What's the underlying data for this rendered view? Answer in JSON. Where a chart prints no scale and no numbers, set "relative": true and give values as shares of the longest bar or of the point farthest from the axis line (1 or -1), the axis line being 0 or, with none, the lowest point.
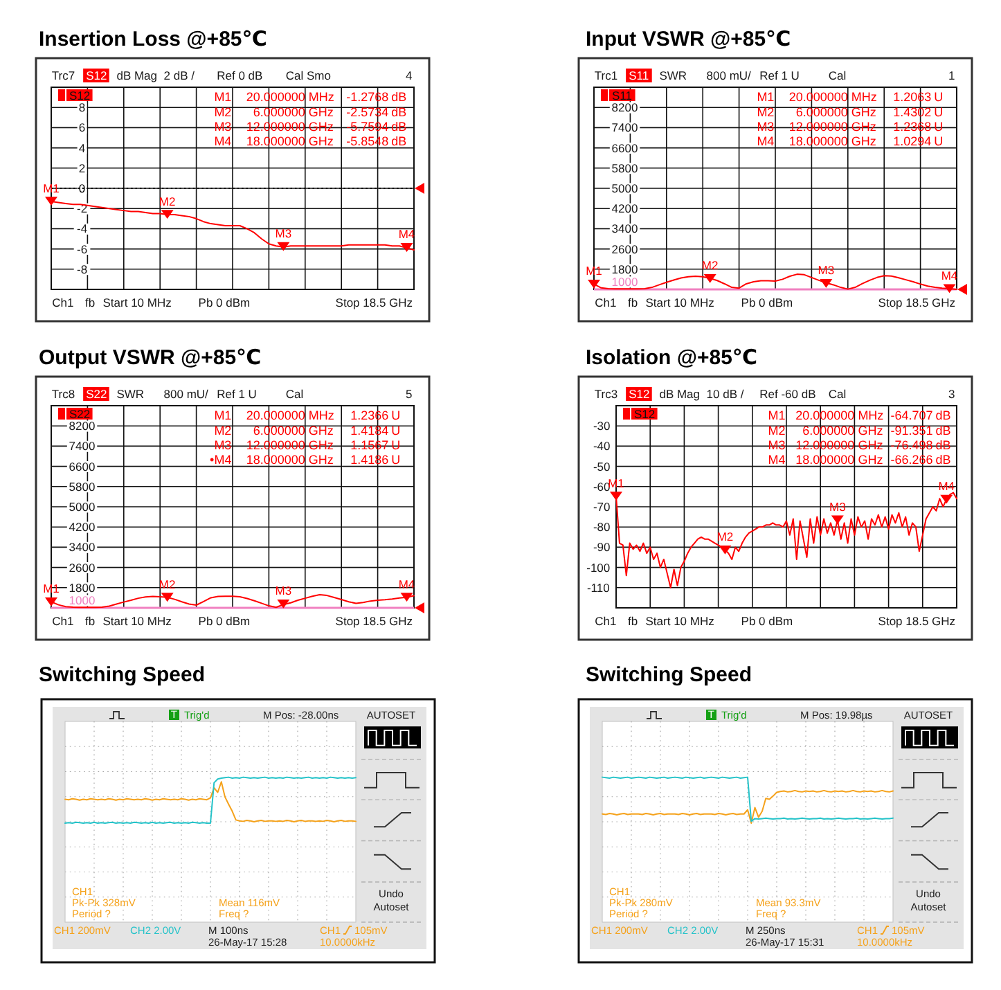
{
  "chart_data": [
    {
      "type": "line",
      "title": "Insertion Loss @+85℃",
      "categories": [
        null,
        null,
        null,
        null,
        null,
        null,
        null,
        null,
        null,
        null,
        null,
        null,
        null,
        null,
        null,
        null,
        null,
        null,
        null,
        null,
        null,
        null,
        null,
        null,
        null,
        null,
        null,
        null,
        null,
        null,
        null,
        null,
        null,
        null,
        null,
        null,
        null,
        null,
        null,
        null,
        null,
        null,
        null,
        null,
        null,
        null,
        null,
        null,
        null,
        null,
        null
      ],
      "ylim": [
        -10,
        10
      ],
      "yticks": [
        {
          "value": -10,
          "label": null
        },
        -8,
        -6,
        -4,
        -2,
        0,
        2,
        4,
        6,
        8,
        {
          "value": 10,
          "label": null
        }
      ],
      "grid": true,
      "tick_labels": "y",
      "legend": "top left",
      "series": [
        {
          "name": "S12",
          "color": "#ff0000",
          "values": [
            -1.3,
            -1.4,
            -1.5,
            -1.6,
            -1.6,
            -1.7,
            -1.8,
            -1.9,
            -2,
            -2.1,
            -2.2,
            -2.3,
            -2.3,
            -2.4,
            -2.5,
            -2.5,
            -2.6,
            -2.6,
            -2.7,
            -2.8,
            -3,
            -3.3,
            -3.5,
            -3.6,
            -3.7,
            -3.7,
            -3.7,
            -4,
            -4.4,
            -5,
            -5.5,
            -5.7,
            -5.8,
            -5.7,
            -5.7,
            -5.7,
            -5.7,
            -5.7,
            -5.7,
            -5.7,
            -5.7,
            -5.6,
            -5.6,
            -5.6,
            -5.6,
            -5.6,
            -5.6,
            -5.7,
            -5.7,
            -5.9,
            -6.1
          ]
        },
        {
          "type": "scatter",
          "marker": "triangle",
          "color": "#ff0000",
          "values": [
            -1.2768,
            null,
            null,
            null,
            null,
            null,
            null,
            null,
            null,
            null,
            null,
            null,
            null,
            null,
            null,
            null,
            -2.5734,
            null,
            null,
            null,
            null,
            null,
            null,
            null,
            null,
            null,
            null,
            null,
            null,
            null,
            null,
            null,
            -5.7594,
            null,
            null,
            null,
            null,
            null,
            null,
            null,
            null,
            null,
            null,
            null,
            null,
            null,
            null,
            null,
            null,
            -5.8548,
            null
          ],
          "value_labels": [
            "M1",
            null,
            null,
            null,
            null,
            null,
            null,
            null,
            null,
            null,
            null,
            null,
            null,
            null,
            null,
            null,
            "M2",
            null,
            null,
            null,
            null,
            null,
            null,
            null,
            null,
            null,
            null,
            null,
            null,
            null,
            null,
            null,
            "M3",
            null,
            null,
            null,
            null,
            null,
            null,
            null,
            null,
            null,
            null,
            null,
            null,
            null,
            null,
            null,
            null,
            "M4",
            null
          ]
        }
      ],
      "ref_lines": [
        {
          "axis": "y",
          "value": 0,
          "color": "#000000",
          "line_style": "dotted"
        }
      ],
      "annotations": [
        "Trc7",
        "S12",
        "dB Mag",
        "2 dB /",
        "Ref 0 dB",
        "Cal Smo",
        "4",
        "Ch1",
        "fb",
        "Start 10 MHz",
        "Pb 0 dBm",
        "Stop 18.5 GHz",
        "M1 20.000000 MHz -1.2768 dB",
        "M2 6.000000 GHz -2.5734 dB",
        "M3 12.000000 GHz -5.7594 dB",
        "M4 18.000000 GHz -5.8548 dB"
      ]
    },
    {
      "type": "line",
      "title": "Input VSWR @+85℃",
      "categories": [
        null,
        null,
        null,
        null,
        null,
        null,
        null,
        null,
        null,
        null,
        null,
        null,
        null,
        null,
        null,
        null,
        null,
        null,
        null,
        null,
        null,
        null,
        null,
        null,
        null,
        null,
        null,
        null,
        null,
        null,
        null,
        null,
        null,
        null,
        null,
        null,
        null,
        null,
        null,
        null,
        null,
        null,
        null,
        null,
        null,
        null,
        null,
        null,
        null,
        null,
        null
      ],
      "ylim": [
        1000,
        9000
      ],
      "yticks": [
        1000,
        1800,
        2600,
        3400,
        4200,
        5000,
        5800,
        6600,
        7400,
        8200,
        {
          "value": 9000,
          "label": null
        }
      ],
      "grid": true,
      "tick_labels": "y",
      "legend": "top left",
      "series": [
        {
          "name": "S11",
          "color": "#ff0000",
          "values": [
            1210,
            1060,
            1030,
            1020,
            1020,
            1020,
            1020,
            1030,
            1080,
            1180,
            1280,
            1370,
            1450,
            1500,
            1520,
            1500,
            1440,
            1350,
            1220,
            1080,
            1050,
            1220,
            1300,
            1340,
            1340,
            1330,
            1400,
            1520,
            1600,
            1580,
            1470,
            1360,
            1260,
            1180,
            1080,
            1010,
            1080,
            1230,
            1360,
            1470,
            1540,
            1530,
            1460,
            1380,
            1300,
            1210,
            1130,
            1080,
            1050,
            1030,
            1000
          ]
        },
        {
          "type": "scatter",
          "marker": "triangle",
          "color": "#ff0000",
          "values": [
            1206.3,
            null,
            null,
            null,
            null,
            null,
            null,
            null,
            null,
            null,
            null,
            null,
            null,
            null,
            null,
            null,
            1430.2,
            null,
            null,
            null,
            null,
            null,
            null,
            null,
            null,
            null,
            null,
            null,
            null,
            null,
            null,
            null,
            1236.8,
            null,
            null,
            null,
            null,
            null,
            null,
            null,
            null,
            null,
            null,
            null,
            null,
            null,
            null,
            null,
            null,
            1029.4,
            null
          ],
          "value_labels": [
            "M1",
            null,
            null,
            null,
            null,
            null,
            null,
            null,
            null,
            null,
            null,
            null,
            null,
            null,
            null,
            null,
            "M2",
            null,
            null,
            null,
            null,
            null,
            null,
            null,
            null,
            null,
            null,
            null,
            null,
            null,
            null,
            null,
            "M3",
            null,
            null,
            null,
            null,
            null,
            null,
            null,
            null,
            null,
            null,
            null,
            null,
            null,
            null,
            null,
            null,
            "M4",
            null
          ]
        }
      ],
      "ref_lines": [
        {
          "axis": "y",
          "value": 1000,
          "color": "#f080c0",
          "line_style": "solid"
        }
      ],
      "annotations": [
        "Trc1",
        "S11",
        "SWR",
        "800 mU/",
        "Ref 1 U",
        "Cal",
        "1",
        "Ch1",
        "fb",
        "Start 10 MHz",
        "Pb 0 dBm",
        "Stop 18.5 GHz",
        "M1 20.000000 MHz 1.2063 U",
        "M2 6.000000 GHz 1.4302 U",
        "M3 12.000000 GHz 1.2368 U",
        "M4 18.000000 GHz 1.0294 U"
      ]
    },
    {
      "type": "line",
      "title": "Output VSWR @+85℃",
      "categories": [
        null,
        null,
        null,
        null,
        null,
        null,
        null,
        null,
        null,
        null,
        null,
        null,
        null,
        null,
        null,
        null,
        null,
        null,
        null,
        null,
        null,
        null,
        null,
        null,
        null,
        null,
        null,
        null,
        null,
        null,
        null,
        null,
        null,
        null,
        null,
        null,
        null,
        null,
        null,
        null,
        null,
        null,
        null,
        null,
        null,
        null,
        null,
        null,
        null,
        null,
        null
      ],
      "ylim": [
        1000,
        9000
      ],
      "yticks": [
        1000,
        1800,
        2600,
        3400,
        4200,
        5000,
        5800,
        6600,
        7400,
        8200,
        {
          "value": 9000,
          "label": null
        }
      ],
      "grid": true,
      "tick_labels": "y",
      "legend": "top left",
      "series": [
        {
          "name": "S22",
          "color": "#ff0000",
          "values": [
            1240,
            1120,
            1050,
            1030,
            1020,
            1020,
            1020,
            1030,
            1070,
            1150,
            1230,
            1300,
            1380,
            1430,
            1450,
            1440,
            1420,
            1340,
            1240,
            1150,
            1110,
            1250,
            1400,
            1450,
            1460,
            1460,
            1440,
            1370,
            1280,
            1180,
            1080,
            1020,
            1130,
            1200,
            1300,
            1380,
            1460,
            1520,
            1490,
            1410,
            1330,
            1240,
            1180,
            1210,
            1270,
            1300,
            1320,
            1350,
            1390,
            1420,
            1480
          ]
        },
        {
          "type": "scatter",
          "marker": "triangle",
          "color": "#ff0000",
          "values": [
            1236.6,
            null,
            null,
            null,
            null,
            null,
            null,
            null,
            null,
            null,
            null,
            null,
            null,
            null,
            null,
            null,
            1418.4,
            null,
            null,
            null,
            null,
            null,
            null,
            null,
            null,
            null,
            null,
            null,
            null,
            null,
            null,
            null,
            1156.7,
            null,
            null,
            null,
            null,
            null,
            null,
            null,
            null,
            null,
            null,
            null,
            null,
            null,
            null,
            null,
            null,
            1418.6,
            null
          ],
          "value_labels": [
            "M1",
            null,
            null,
            null,
            null,
            null,
            null,
            null,
            null,
            null,
            null,
            null,
            null,
            null,
            null,
            null,
            "M2",
            null,
            null,
            null,
            null,
            null,
            null,
            null,
            null,
            null,
            null,
            null,
            null,
            null,
            null,
            null,
            "M3",
            null,
            null,
            null,
            null,
            null,
            null,
            null,
            null,
            null,
            null,
            null,
            null,
            null,
            null,
            null,
            null,
            "M4",
            null
          ]
        }
      ],
      "ref_lines": [
        {
          "axis": "y",
          "value": 1000,
          "color": "#f080c0",
          "line_style": "solid"
        }
      ],
      "annotations": [
        "Trc8",
        "S22",
        "SWR",
        "800 mU/",
        "Ref 1 U",
        "Cal",
        "5",
        "Ch1",
        "fb",
        "Start 10 MHz",
        "Pb 0 dBm",
        "Stop 18.5 GHz",
        "M1 20.000000 MHz 1.2366 U",
        "M2 6.000000 GHz 1.4184 U",
        "M3 12.000000 GHz 1.1567 U",
        "•M4 18.000000 GHz 1.4186 U"
      ]
    },
    {
      "type": "line",
      "title": "Isolation @+85℃",
      "categories": [
        null,
        null,
        null,
        null,
        null,
        null,
        null,
        null,
        null,
        null,
        null,
        null,
        null,
        null,
        null,
        null,
        null,
        null,
        null,
        null,
        null,
        null,
        null,
        null,
        null,
        null,
        null,
        null,
        null,
        null,
        null,
        null,
        null,
        null,
        null,
        null,
        null,
        null,
        null,
        null,
        null,
        null,
        null,
        null,
        null,
        null,
        null,
        null,
        null,
        null,
        null,
        null,
        null,
        null,
        null,
        null,
        null,
        null,
        null,
        null,
        null,
        null,
        null,
        null,
        null,
        null,
        null,
        null,
        null,
        null,
        null,
        null,
        null,
        null,
        null,
        null,
        null,
        null,
        null,
        null,
        null,
        null,
        null,
        null,
        null,
        null,
        null,
        null,
        null,
        null,
        null,
        null,
        null,
        null,
        null,
        null,
        null,
        null,
        null,
        null,
        null
      ],
      "ylim": [
        -120,
        -20
      ],
      "yticks": [
        {
          "value": -120,
          "label": null
        },
        -110,
        -100,
        -90,
        -80,
        -70,
        -60,
        -50,
        -40,
        -30,
        {
          "value": -20,
          "label": null
        }
      ],
      "grid": true,
      "tick_labels": "y",
      "legend": "top left",
      "series": [
        {
          "name": "S12",
          "color": "#ff0000",
          "values": [
            -64.7,
            -88,
            -89,
            -104,
            -88,
            -91,
            -89,
            -92,
            -88,
            -93,
            -90,
            -96,
            -93,
            -100,
            -96,
            -103,
            -110,
            -101,
            -109,
            -100,
            -97,
            -93,
            -90,
            -88,
            -86,
            -85,
            -86,
            -86,
            -87,
            -88,
            -89,
            -90,
            -91.4,
            -93,
            -96,
            -90,
            -92,
            -88,
            -85,
            -83,
            -82,
            -81,
            -80,
            -80,
            -79,
            -79,
            -78,
            -79,
            -79,
            -80,
            -77,
            -84,
            -76,
            -96,
            -77,
            -86,
            -95,
            -76,
            -88,
            -75,
            -84,
            -76,
            -83,
            -78,
            -84,
            -76.5,
            -86,
            -78,
            -88,
            -76,
            -84,
            -75,
            -80,
            -77,
            -86,
            -76,
            -79,
            -74,
            -80,
            -75,
            -81,
            -74,
            -78,
            -73,
            -80,
            -75,
            -84,
            -78,
            -80,
            -92,
            -84,
            -76,
            -73,
            -70,
            -72,
            -66,
            -70,
            -66.3,
            -64,
            -63,
            -66
          ]
        },
        {
          "type": "scatter",
          "marker": "triangle",
          "color": "#ff0000",
          "values": [
            -64.707,
            null,
            null,
            null,
            null,
            null,
            null,
            null,
            null,
            null,
            null,
            null,
            null,
            null,
            null,
            null,
            null,
            null,
            null,
            null,
            null,
            null,
            null,
            null,
            null,
            null,
            null,
            null,
            null,
            null,
            null,
            null,
            -91.351,
            null,
            null,
            null,
            null,
            null,
            null,
            null,
            null,
            null,
            null,
            null,
            null,
            null,
            null,
            null,
            null,
            null,
            null,
            null,
            null,
            null,
            null,
            null,
            null,
            null,
            null,
            null,
            null,
            null,
            null,
            null,
            null,
            -76.498,
            null,
            null,
            null,
            null,
            null,
            null,
            null,
            null,
            null,
            null,
            null,
            null,
            null,
            null,
            null,
            null,
            null,
            null,
            null,
            null,
            null,
            null,
            null,
            null,
            null,
            null,
            null,
            null,
            null,
            null,
            null,
            -66.266,
            null,
            null,
            null
          ],
          "value_labels": [
            "M1",
            null,
            null,
            null,
            null,
            null,
            null,
            null,
            null,
            null,
            null,
            null,
            null,
            null,
            null,
            null,
            null,
            null,
            null,
            null,
            null,
            null,
            null,
            null,
            null,
            null,
            null,
            null,
            null,
            null,
            null,
            null,
            "M2",
            null,
            null,
            null,
            null,
            null,
            null,
            null,
            null,
            null,
            null,
            null,
            null,
            null,
            null,
            null,
            null,
            null,
            null,
            null,
            null,
            null,
            null,
            null,
            null,
            null,
            null,
            null,
            null,
            null,
            null,
            null,
            null,
            "M3",
            null,
            null,
            null,
            null,
            null,
            null,
            null,
            null,
            null,
            null,
            null,
            null,
            null,
            null,
            null,
            null,
            null,
            null,
            null,
            null,
            null,
            null,
            null,
            null,
            null,
            null,
            null,
            null,
            null,
            null,
            null,
            "M4",
            null,
            null,
            null
          ]
        }
      ],
      "annotations": [
        "Trc3",
        "S12",
        "dB Mag",
        "10 dB /",
        "Ref -60 dB",
        "Cal",
        "3",
        "Ch1",
        "fb",
        "Start 10 MHz",
        "Pb 0 dBm",
        "Stop 18.5 GHz",
        "M1 20.000000 MHz -64.707 dB",
        "M2 6.000000 GHz -91.351 dB",
        "M3 12.000000 GHz -76.498 dB",
        "M4 18.000000 GHz -66.266 dB"
      ]
    },
    {
      "type": "line",
      "title": "Switching Speed",
      "relative": true,
      "grid": true,
      "categories": [
        null,
        null,
        null,
        null,
        null,
        null,
        null,
        null,
        null,
        null,
        null,
        null,
        null,
        null,
        null,
        null,
        null,
        null,
        null,
        null,
        null,
        null,
        null,
        null,
        null,
        null,
        null,
        null,
        null,
        null,
        null,
        null,
        null,
        null,
        null,
        null,
        null,
        null,
        null,
        null,
        null,
        null,
        null,
        null,
        null,
        null,
        null,
        null,
        null,
        null,
        null,
        null,
        null,
        null,
        null,
        null,
        null,
        null,
        null,
        null,
        null,
        null,
        null,
        null,
        null,
        null,
        null,
        null,
        null,
        null,
        null,
        null,
        null,
        null,
        null,
        null,
        null,
        null,
        null,
        null,
        null
      ],
      "series": [
        {
          "color": "#f5a21b",
          "values": [
            0.52,
            0.51,
            0.53,
            0.52,
            0.5,
            0.52,
            0.51,
            0.53,
            0.52,
            0.51,
            0.52,
            0.51,
            0.53,
            0.52,
            0.5,
            0.52,
            0.51,
            0.53,
            0.52,
            0.51,
            0.52,
            0.51,
            0.53,
            0.52,
            0.5,
            0.52,
            0.51,
            0.53,
            0.52,
            0.51,
            0.52,
            0.51,
            0.53,
            0.52,
            0.5,
            0.52,
            0.51,
            0.53,
            0.52,
            0.51,
            0.55,
            0.77,
            0.67,
            0.9,
            0.57,
            0.41,
            0.26,
            0.07,
            0.05,
            0.04,
            0.06,
            0.05,
            0.03,
            0.05,
            0.06,
            0.04,
            0.05,
            0.05,
            0.04,
            0.05,
            0.04,
            0.06,
            0.05,
            0.03,
            0.05,
            0.06,
            0.04,
            0.05,
            0.05,
            0.04,
            0.05,
            0.04,
            0.06,
            0.05,
            0.03,
            0.05,
            0.06,
            0.04,
            0.05,
            0.05,
            0.04
          ]
        },
        {
          "color": "#25c3c9",
          "values": [
            0,
            0.01,
            0,
            0.02,
            0.01,
            0,
            0.01,
            0,
            0.02,
            0,
            0.01,
            0,
            0.01,
            0.02,
            0,
            0.01,
            0,
            0.01,
            0,
            0.02,
            0.01,
            0,
            0.01,
            0,
            0.02,
            0,
            0.01,
            0,
            0.01,
            0.02,
            0,
            0.01,
            0,
            0.01,
            0,
            0.02,
            0.01,
            0,
            0.01,
            0,
            0,
            0.88,
            0.96,
            0.98,
            0.99,
            1,
            0.98,
            0.99,
            0.98,
            1,
            0.99,
            0.98,
            0.99,
            0.98,
            0.99,
            1,
            0.98,
            0.99,
            0.98,
            0.99,
            0.98,
            1,
            0.99,
            0.98,
            0.99,
            0.98,
            0.99,
            1,
            0.98,
            0.99,
            0.98,
            0.99,
            0.98,
            1,
            0.99,
            0.98,
            0.99,
            0.98,
            0.99,
            0.98,
            0.99
          ]
        }
      ],
      "annotations": [
        "T",
        "Trig'd",
        "M Pos: -28.00ns",
        "AUTOSET",
        "Undo",
        "Autoset",
        "CH1",
        "Pk-Pk 328mV",
        "Period ?",
        "Mean 116mV",
        "Freq ?",
        "CH1 200mV",
        "CH2 2.00V",
        "M 100ns",
        "26-May-17 15:28",
        "CH1",
        "105mV",
        "10.0000kHz"
      ]
    },
    {
      "type": "line",
      "title": "Switching Speed",
      "relative": true,
      "grid": true,
      "categories": [
        null,
        null,
        null,
        null,
        null,
        null,
        null,
        null,
        null,
        null,
        null,
        null,
        null,
        null,
        null,
        null,
        null,
        null,
        null,
        null,
        null,
        null,
        null,
        null,
        null,
        null,
        null,
        null,
        null,
        null,
        null,
        null,
        null,
        null,
        null,
        null,
        null,
        null,
        null,
        null,
        null,
        null,
        null,
        null,
        null,
        null,
        null,
        null,
        null,
        null,
        null,
        null,
        null,
        null,
        null,
        null,
        null,
        null,
        null,
        null,
        null,
        null,
        null,
        null,
        null,
        null,
        null,
        null,
        null,
        null,
        null,
        null,
        null,
        null,
        null,
        null,
        null,
        null,
        null,
        null,
        null
      ],
      "series": [
        {
          "color": "#f5a21b",
          "values": [
            0.2,
            0.19,
            0.21,
            0.2,
            0.18,
            0.2,
            0.21,
            0.19,
            0.2,
            0.2,
            0.2,
            0.19,
            0.21,
            0.2,
            0.18,
            0.2,
            0.21,
            0.19,
            0.2,
            0.2,
            0.2,
            0.19,
            0.21,
            0.2,
            0.18,
            0.2,
            0.21,
            0.19,
            0.2,
            0.2,
            0.2,
            0.19,
            0.21,
            0.2,
            0.18,
            0.2,
            0.21,
            0.19,
            0.2,
            0.2,
            0.29,
            0,
            0.34,
            0.13,
            0.26,
            0.54,
            0.52,
            0.59,
            0.67,
            0.69,
            0.7,
            0.68,
            0.69,
            0.71,
            0.69,
            0.68,
            0.7,
            0.69,
            0.7,
            0.68,
            0.69,
            0.71,
            0.69,
            0.68,
            0.7,
            0.69,
            0.7,
            0.68,
            0.69,
            0.71,
            0.69,
            0.68,
            0.7,
            0.69,
            0.7,
            0.68,
            0.69,
            0.71,
            0.69,
            0.68,
            0.7
          ]
        },
        {
          "color": "#25c3c9",
          "values": [
            1,
            0.99,
            0.98,
            1,
            0.99,
            0.98,
            0.99,
            1,
            0.98,
            0.99,
            1,
            0.99,
            0.98,
            1,
            0.99,
            0.98,
            0.99,
            1,
            0.98,
            0.99,
            1,
            0.99,
            0.98,
            1,
            0.99,
            0.98,
            0.99,
            1,
            0.98,
            0.99,
            1,
            0.99,
            0.98,
            1,
            0.99,
            0.98,
            0.99,
            1,
            0.98,
            0.99,
            1,
            0.04,
            0.1,
            0.09,
            0.1,
            0.11,
            0.1,
            0.09,
            0.1,
            0.1,
            0.11,
            0.09,
            0.1,
            0.09,
            0.1,
            0.11,
            0.1,
            0.09,
            0.1,
            0.1,
            0.11,
            0.09,
            0.1,
            0.09,
            0.1,
            0.11,
            0.1,
            0.09,
            0.1,
            0.1,
            0.11,
            0.09,
            0.1,
            0.09,
            0.1,
            0.11,
            0.1,
            0.09,
            0.1,
            0.1,
            0.11
          ]
        }
      ],
      "annotations": [
        "T",
        "Trig'd",
        "M Pos: 19.98µs",
        "AUTOSET",
        "Undo",
        "Autoset",
        "CH1",
        "Pk-Pk 280mV",
        "Period ?",
        "Mean 93.3mV",
        "Freq ?",
        "CH1 200mV",
        "CH2 2.00V",
        "M 250ns",
        "26-May-17 15:31",
        "CH1",
        "105mV",
        "10.0000kHz"
      ]
    }
  ]
}
